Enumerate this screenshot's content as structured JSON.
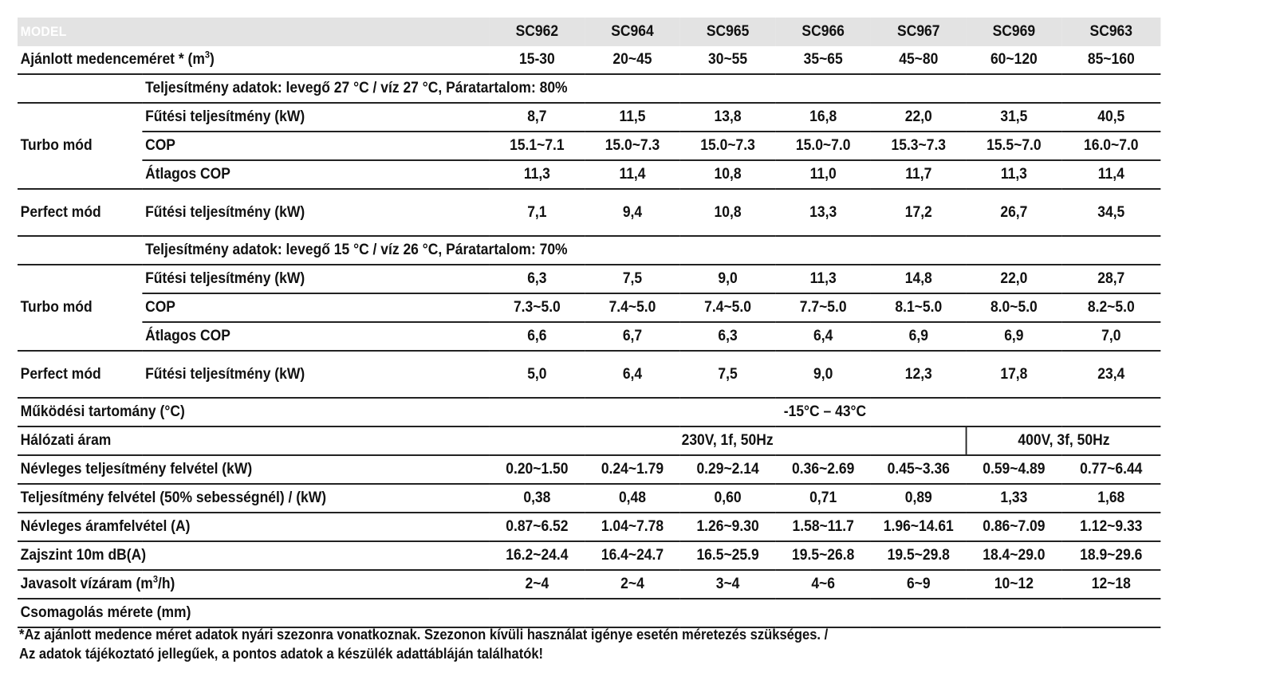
{
  "header": {
    "model_label": "MODEL",
    "models": [
      "SC962",
      "SC964",
      "SC965",
      "SC966",
      "SC967",
      "SC969",
      "SC963"
    ]
  },
  "pool_size": {
    "label_pre": "Ajánlott medenceméret * (m",
    "label_sup": "3",
    "label_post": ")",
    "values": [
      "15-30",
      "20~45",
      "30~55",
      "35~65",
      "45~80",
      "60~120",
      "85~160"
    ]
  },
  "section1": {
    "condition": "Teljesítmény adatok: levegő 27 °C / víz 27 °C, Páratartalom: 80%",
    "turbo_label": "Turbo mód",
    "perfect_label": "Perfect mód",
    "rows": [
      {
        "label": "Fűtési teljesítmény (kW)",
        "values": [
          "8,7",
          "11,5",
          "13,8",
          "16,8",
          "22,0",
          "31,5",
          "40,5"
        ]
      },
      {
        "label": "COP",
        "values": [
          "15.1~7.1",
          "15.0~7.3",
          "15.0~7.3",
          "15.0~7.0",
          "15.3~7.3",
          "15.5~7.0",
          "16.0~7.0"
        ]
      },
      {
        "label": "Átlagos COP",
        "values": [
          "11,3",
          "11,4",
          "10,8",
          "11,0",
          "11,7",
          "11,3",
          "11,4"
        ]
      },
      {
        "label": "Fűtési teljesítmény (kW)",
        "values": [
          "7,1",
          "9,4",
          "10,8",
          "13,3",
          "17,2",
          "26,7",
          "34,5"
        ]
      }
    ]
  },
  "section2": {
    "condition": "Teljesítmény adatok: levegő 15 °C / víz 26 °C, Páratartalom: 70%",
    "turbo_label": "Turbo mód",
    "perfect_label": "Perfect mód",
    "rows": [
      {
        "label": "Fűtési teljesítmény (kW)",
        "values": [
          "6,3",
          "7,5",
          "9,0",
          "11,3",
          "14,8",
          "22,0",
          "28,7"
        ]
      },
      {
        "label": "COP",
        "values": [
          "7.3~5.0",
          "7.4~5.0",
          "7.4~5.0",
          "7.7~5.0",
          "8.1~5.0",
          "8.0~5.0",
          "8.2~5.0"
        ]
      },
      {
        "label": "Átlagos COP",
        "values": [
          "6,6",
          "6,7",
          "6,3",
          "6,4",
          "6,9",
          "6,9",
          "7,0"
        ]
      },
      {
        "label": "Fűtési teljesítmény (kW)",
        "values": [
          "5,0",
          "6,4",
          "7,5",
          "9,0",
          "12,3",
          "17,8",
          "23,4"
        ]
      }
    ]
  },
  "operating_range": {
    "label": "Működési tartomány (°C)",
    "value": "-15°C – 43°C"
  },
  "power_supply": {
    "label": "Hálózati áram",
    "single_phase": "230V, 1f, 50Hz",
    "three_phase": "400V, 3f, 50Hz"
  },
  "rated_input": {
    "label": "Névleges teljesítmény felvétel (kW)",
    "values": [
      "0.20~1.50",
      "0.24~1.79",
      "0.29~2.14",
      "0.36~2.69",
      "0.45~3.36",
      "0.59~4.89",
      "0.77~6.44"
    ]
  },
  "input_50": {
    "label": "Teljesítmény felvétel (50% sebességnél) / (kW)",
    "values": [
      "0,38",
      "0,48",
      "0,60",
      "0,71",
      "0,89",
      "1,33",
      "1,68"
    ]
  },
  "rated_current": {
    "label": "Névleges áramfelvétel (A)",
    "values": [
      "0.87~6.52",
      "1.04~7.78",
      "1.26~9.30",
      "1.58~11.7",
      "1.96~14.61",
      "0.86~7.09",
      "1.12~9.33"
    ]
  },
  "noise": {
    "label": "Zajszint 10m dB(A)",
    "values": [
      "16.2~24.4",
      "16.4~24.7",
      "16.5~25.9",
      "19.5~26.8",
      "19.5~29.8",
      "18.4~29.0",
      "18.9~29.6"
    ]
  },
  "water_flow": {
    "label_pre": "Javasolt vízáram (m",
    "label_sup": "3",
    "label_post": "/h)",
    "values": [
      "2~4",
      "2~4",
      "3~4",
      "4~6",
      "6~9",
      "10~12",
      "12~18"
    ]
  },
  "packaging": {
    "label": "Csomagolás mérete (mm)"
  },
  "footnote": {
    "line1": "*Az ajánlott medence méret adatok nyári szezonra vonatkoznak. Szezonon kívüli használat igénye esetén méretezés szükséges. /",
    "line2": "Az adatok tájékoztató jellegűek, a pontos adatok a készülék adattábláján találhatók!"
  }
}
